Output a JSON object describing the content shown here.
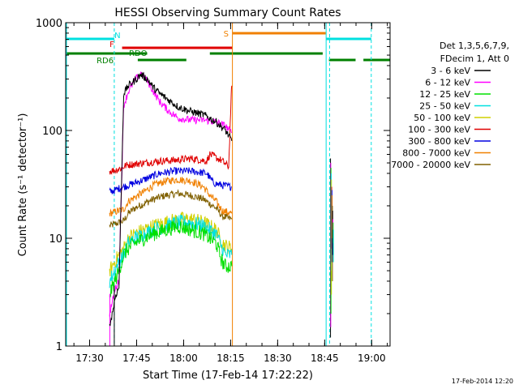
{
  "chart_data": {
    "type": "line",
    "title": "HESSI Observing Summary Count Rates",
    "xlabel": "Start Time (17-Feb-14 17:22:22)",
    "ylabel": "Count Rate (s⁻¹ detector⁻¹)",
    "x_unit": "minutes since 17:22:22",
    "xlim": [
      0,
      103.5
    ],
    "ylim": [
      1,
      1000
    ],
    "yscale": "log",
    "x_ticks": [
      "17:30",
      "17:45",
      "18:00",
      "18:15",
      "18:30",
      "18:45",
      "19:00"
    ],
    "x_tick_minutes": [
      7.63,
      22.63,
      37.63,
      52.63,
      67.63,
      82.63,
      97.63
    ],
    "y_ticks": [
      "1",
      "10",
      "100",
      "1000"
    ],
    "y_tick_values": [
      1,
      10,
      100,
      1000
    ],
    "legend": {
      "header": [
        "Det 1,3,5,6,7,9,",
        "FDecim 1, Att 0"
      ],
      "placement": "right",
      "entries": [
        {
          "label": "3 - 6 keV",
          "color": "#000000"
        },
        {
          "label": "6 - 12 keV",
          "color": "#ff00ff"
        },
        {
          "label": "12 - 25 keV",
          "color": "#00e000"
        },
        {
          "label": "25 - 50 keV",
          "color": "#00e0e0"
        },
        {
          "label": "50 - 100 keV",
          "color": "#d0d000"
        },
        {
          "label": "100 - 300 keV",
          "color": "#e00000"
        },
        {
          "label": "300 - 800 keV",
          "color": "#0000e0"
        },
        {
          "label": "800 - 7000 keV",
          "color": "#f08000"
        },
        {
          "label": "7000 - 20000 keV",
          "color": "#806000"
        }
      ]
    },
    "series": [
      {
        "name": "3 - 6 keV",
        "color": "#000000",
        "x": [
          14,
          16,
          17,
          18.5,
          20,
          22,
          24,
          26,
          28,
          30,
          33,
          36,
          40,
          44,
          48,
          51,
          53
        ],
        "y": [
          1.5,
          3,
          3.5,
          220,
          260,
          290,
          330,
          300,
          250,
          220,
          190,
          165,
          150,
          140,
          120,
          100,
          80
        ]
      },
      {
        "name": "6 - 12 keV",
        "color": "#ff00ff",
        "x": [
          14,
          16,
          17,
          18.5,
          20,
          22,
          24,
          26,
          28,
          30,
          33,
          36,
          40,
          44,
          48,
          51,
          53
        ],
        "y": [
          2,
          3.5,
          4,
          170,
          230,
          290,
          340,
          290,
          230,
          185,
          150,
          130,
          125,
          125,
          120,
          110,
          95
        ]
      },
      {
        "name": "12 - 25 keV",
        "color": "#00e000",
        "x": [
          14,
          17,
          18.5,
          20,
          22,
          25,
          28,
          32,
          36,
          40,
          44,
          48,
          50,
          51,
          53
        ],
        "y": [
          3,
          5,
          7,
          8,
          9,
          10,
          11,
          12,
          13,
          12,
          11,
          9,
          6,
          5.5,
          5.5
        ]
      },
      {
        "name": "25 - 50 keV",
        "color": "#00e0e0",
        "x": [
          14,
          17,
          18.5,
          20,
          22,
          25,
          28,
          32,
          36,
          40,
          44,
          48,
          50,
          51,
          53
        ],
        "y": [
          4,
          6,
          7,
          9,
          10,
          11,
          12,
          13,
          14,
          14,
          13,
          11,
          8,
          7,
          7
        ]
      },
      {
        "name": "50 - 100 keV",
        "color": "#d0d000",
        "x": [
          14,
          17,
          18.5,
          20,
          22,
          25,
          28,
          32,
          36,
          40,
          44,
          48,
          50,
          51,
          53
        ],
        "y": [
          5,
          7,
          8,
          10,
          11,
          12,
          13,
          14,
          15,
          15,
          14,
          12,
          9,
          8.5,
          8
        ]
      },
      {
        "name": "100 - 300 keV",
        "color": "#e00000",
        "x": [
          14,
          16,
          18,
          19,
          20,
          25,
          30,
          35,
          40,
          45,
          46,
          47,
          50,
          52,
          52.8,
          53
        ],
        "y": [
          42,
          43,
          45,
          47,
          48,
          50,
          52,
          53,
          55,
          52,
          60,
          58,
          52,
          46,
          200,
          260
        ]
      },
      {
        "name": "300 - 800 keV",
        "color": "#0000e0",
        "x": [
          14,
          16,
          17,
          18.5,
          20,
          25,
          30,
          35,
          40,
          45,
          47,
          48,
          50,
          53
        ],
        "y": [
          27,
          28,
          29,
          30,
          31,
          35,
          40,
          42,
          42,
          40,
          33,
          32,
          31,
          30
        ]
      },
      {
        "name": "800 - 7000 keV",
        "color": "#f08000",
        "x": [
          14,
          17,
          18.5,
          20,
          22,
          25,
          28,
          32,
          36,
          40,
          44,
          46,
          48,
          50,
          53
        ],
        "y": [
          17,
          18,
          18.5,
          22,
          24,
          27,
          31,
          34,
          35,
          34,
          30,
          25,
          22,
          18,
          17
        ]
      },
      {
        "name": "7000 - 20000 keV",
        "color": "#806000",
        "x": [
          14,
          17,
          18.5,
          20,
          22,
          25,
          28,
          32,
          36,
          40,
          44,
          48,
          50,
          53
        ],
        "y": [
          13,
          14,
          14.5,
          17,
          19,
          21,
          23,
          25,
          26,
          25,
          23,
          19,
          16,
          15
        ]
      }
    ],
    "post_gap_samples": {
      "x_min": [
        84.5,
        85.5
      ],
      "y": [
        [
          1.2,
          55
        ],
        [
          1.5,
          50
        ],
        [
          2,
          45
        ],
        [
          5,
          40
        ],
        [
          3,
          35
        ],
        [
          8,
          30
        ],
        [
          6,
          28
        ],
        [
          10,
          25
        ],
        [
          4,
          20
        ],
        [
          7,
          18
        ],
        [
          12,
          15
        ],
        [
          9,
          14
        ],
        [
          6,
          12
        ]
      ]
    },
    "flag_bars": [
      {
        "label": "N",
        "color": "#00e0e0",
        "segments": [
          [
            0,
            15.5
          ],
          [
            83.2,
            97.5
          ]
        ],
        "label_at": 17.5,
        "level": 1
      },
      {
        "label": "F",
        "color": "#e00000",
        "segments": [
          [
            18,
            53.2
          ]
        ],
        "label_at": 15.5,
        "level": 2
      },
      {
        "label": "S",
        "color": "#f08000",
        "segments": [
          [
            53.2,
            83
          ]
        ],
        "label_at": 52,
        "level": 0
      },
      {
        "label": "RDO",
        "color": "#008000",
        "segments": [
          [
            0,
            26
          ],
          [
            46,
            82
          ]
        ],
        "label_at": 26,
        "level": 3
      },
      {
        "label": "RD6",
        "color": "#008000",
        "segments": [
          [
            23,
            38.5
          ],
          [
            84,
            92.5
          ],
          [
            95,
            103.5
          ]
        ],
        "label_at": 15.3,
        "level": 4
      }
    ],
    "vertical_lines": [
      {
        "color": "#00e0e0",
        "x": 15.5,
        "dashed": true
      },
      {
        "color": "#f08000",
        "x": 53.2,
        "dashed": false
      },
      {
        "color": "#00e0e0",
        "x": 83.1,
        "dashed": false
      },
      {
        "color": "#00e0e0",
        "x": 84.2,
        "dashed": true
      },
      {
        "color": "#00e0e0",
        "x": 97.5,
        "dashed": true
      }
    ],
    "timestamp": "17-Feb-2014 12:20"
  }
}
